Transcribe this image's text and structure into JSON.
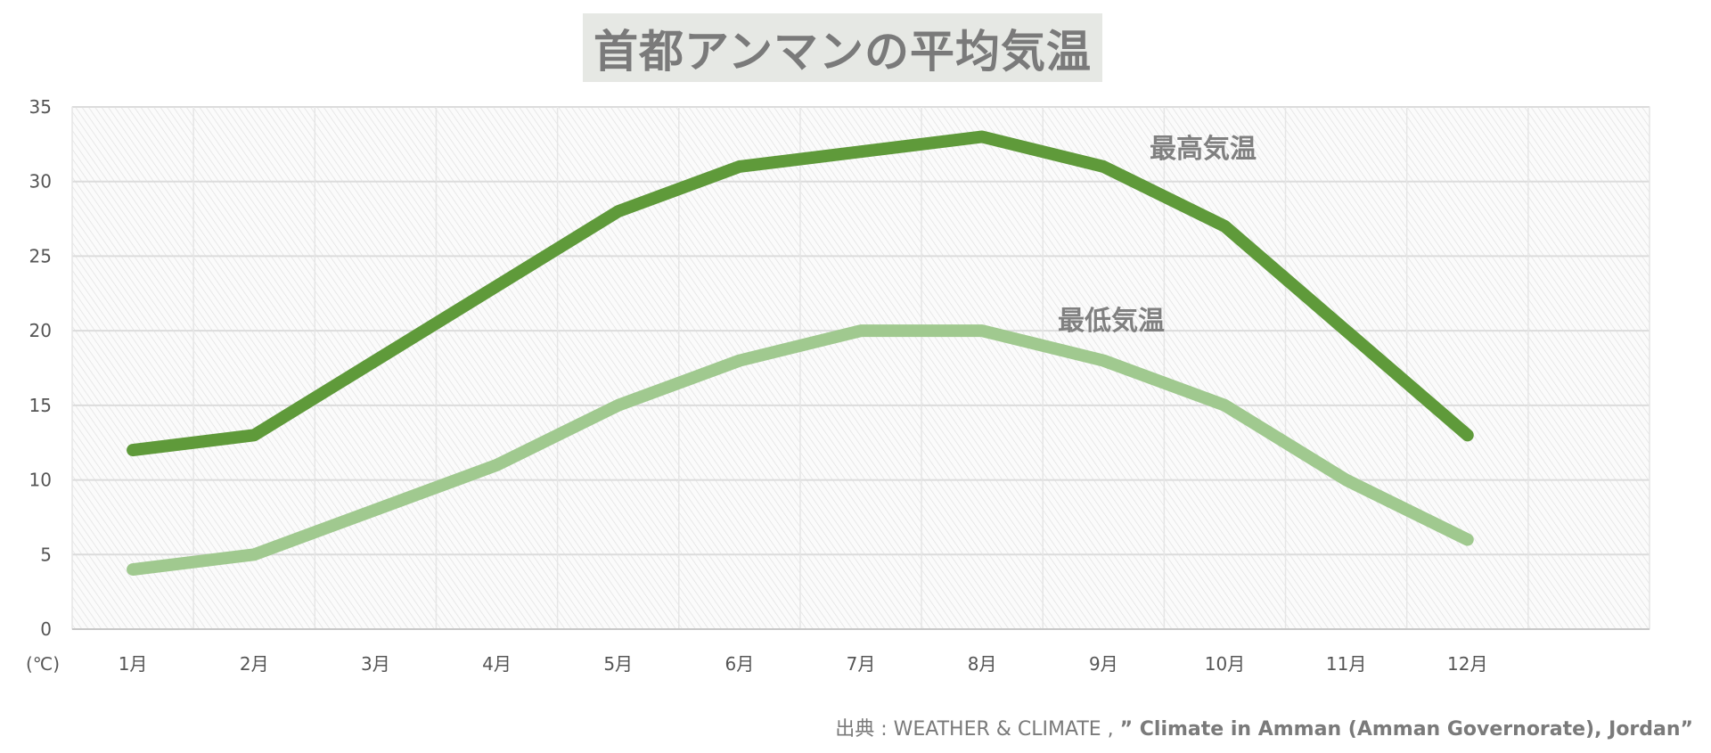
{
  "chart_data": {
    "type": "line",
    "title": "首都アンマンの平均気温",
    "categories": [
      "1月",
      "2月",
      "3月",
      "4月",
      "5月",
      "6月",
      "7月",
      "8月",
      "9月",
      "10月",
      "11月",
      "12月"
    ],
    "ylabel": "(℃)",
    "ylim": [
      0,
      35
    ],
    "yticks": [
      0,
      5,
      10,
      15,
      20,
      25,
      30,
      35
    ],
    "grid": true,
    "legend": "inline labels",
    "series": [
      {
        "name": "最高気温",
        "color": "#5f9a3a",
        "values": [
          12,
          13,
          18,
          23,
          28,
          31,
          32,
          33,
          31,
          27,
          20,
          13
        ]
      },
      {
        "name": "最低気温",
        "color": "#a0c98f",
        "values": [
          4,
          5,
          8,
          11,
          15,
          18,
          20,
          20,
          18,
          15,
          10,
          6
        ]
      }
    ],
    "source_prefix": "出典 : WEATHER & CLIMATE , ",
    "source_title": "” Climate in Amman (Amman Governorate), Jordan”"
  }
}
